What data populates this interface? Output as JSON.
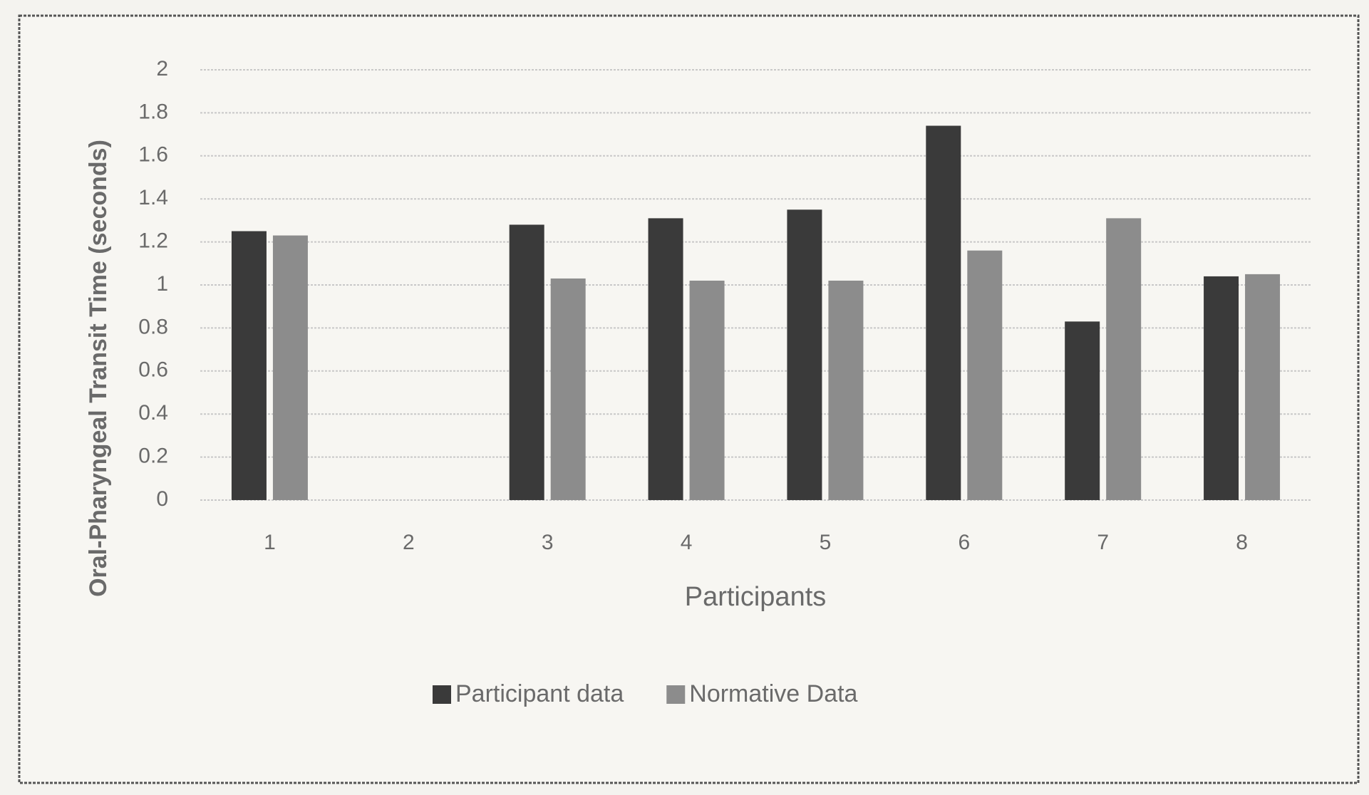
{
  "chart_data": {
    "type": "bar",
    "x_label": "Participants",
    "y_label": "Oral-Pharyngeal Transit Time (seconds)",
    "categories": [
      "1",
      "2",
      "3",
      "4",
      "5",
      "6",
      "7",
      "8"
    ],
    "series": [
      {
        "name": "Participant data",
        "color": "#3a3a3a",
        "values": [
          1.25,
          null,
          1.28,
          1.31,
          1.35,
          1.74,
          0.83,
          1.04
        ]
      },
      {
        "name": "Normative Data",
        "color": "#8c8c8c",
        "values": [
          1.23,
          null,
          1.03,
          1.02,
          1.02,
          1.16,
          1.31,
          1.05
        ]
      }
    ],
    "ylim": [
      0,
      2
    ],
    "yticks": [
      0,
      0.2,
      0.4,
      0.6,
      0.8,
      1,
      1.2,
      1.4,
      1.6,
      1.8,
      2
    ],
    "grid": true,
    "legend": "bottom"
  }
}
